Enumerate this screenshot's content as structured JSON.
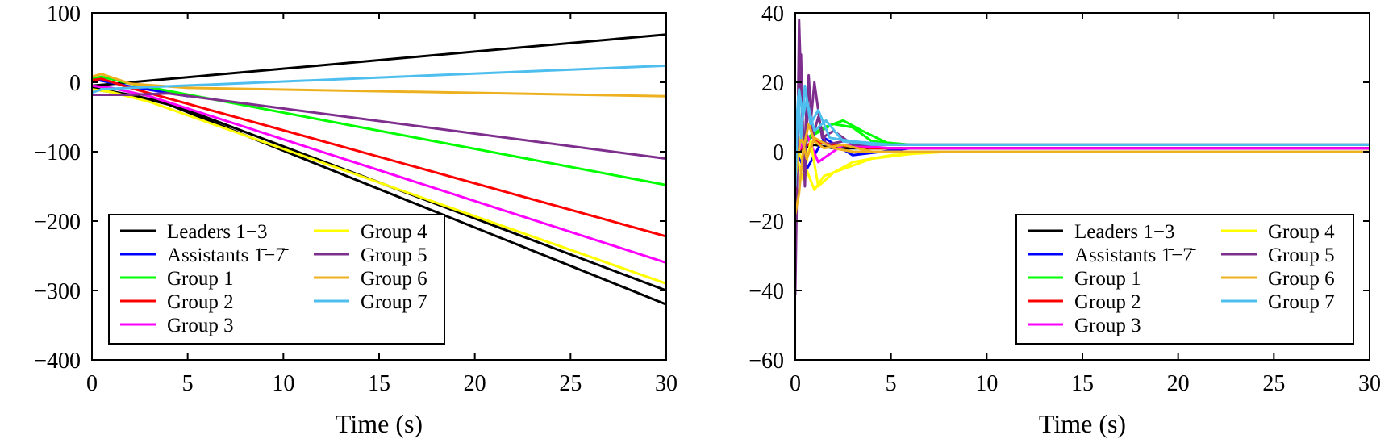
{
  "legend": {
    "entries": [
      {
        "label": "Leaders 1−3",
        "color": "#000000"
      },
      {
        "label": "Assistants 1̄−7̄",
        "color": "#0000ff"
      },
      {
        "label": "Group 1",
        "color": "#00ff00"
      },
      {
        "label": "Group 2",
        "color": "#ff0000"
      },
      {
        "label": "Group 3",
        "color": "#ff00ff"
      },
      {
        "label": "Group 4",
        "color": "#ffff00"
      },
      {
        "label": "Group 5",
        "color": "#7e2f8e"
      },
      {
        "label": "Group 6",
        "color": "#edb120"
      },
      {
        "label": "Group 7",
        "color": "#4dbeee"
      }
    ]
  },
  "chart_data": [
    {
      "type": "line",
      "xlabel": "Time (s)",
      "ylabel": "",
      "xlim": [
        0,
        30
      ],
      "ylim": [
        -400,
        100
      ],
      "xticks": [
        "0",
        "5",
        "10",
        "15",
        "20",
        "25",
        "30"
      ],
      "yticks": [
        "100",
        "0",
        "−100",
        "−200",
        "−300",
        "−400"
      ],
      "ytick_values": [
        100,
        0,
        -100,
        -200,
        -300,
        -400
      ],
      "legend_position": "bottom-left",
      "series": [
        {
          "name": "Leaders 1−3",
          "color": "#000000",
          "lines": [
            {
              "x": [
                0,
                30
              ],
              "y": [
                -5,
                69
              ]
            },
            {
              "x": [
                0,
                2,
                4,
                30
              ],
              "y": [
                -10,
                -18,
                -30,
                -300
              ]
            },
            {
              "x": [
                0,
                2,
                4,
                30
              ],
              "y": [
                -8,
                -18,
                -32,
                -320
              ]
            }
          ]
        },
        {
          "name": "Assistants 1̄−7̄",
          "color": "#0000ff",
          "lines": [
            {
              "x": [
                0,
                2,
                5
              ],
              "y": [
                5,
                -6,
                -20
              ]
            }
          ]
        },
        {
          "name": "Group 1",
          "color": "#00ff00",
          "lines": [
            {
              "x": [
                0,
                0.5,
                2,
                30
              ],
              "y": [
                5,
                8,
                -2,
                -148
              ]
            }
          ]
        },
        {
          "name": "Group 2",
          "color": "#ff0000",
          "lines": [
            {
              "x": [
                0,
                0.5,
                2,
                30
              ],
              "y": [
                3,
                5,
                -8,
                -222
              ]
            }
          ]
        },
        {
          "name": "Group 3",
          "color": "#ff00ff",
          "lines": [
            {
              "x": [
                0,
                1,
                3,
                30
              ],
              "y": [
                -5,
                -8,
                -20,
                -260
              ]
            }
          ]
        },
        {
          "name": "Group 4",
          "color": "#ffff00",
          "lines": [
            {
              "x": [
                0,
                1,
                3,
                30
              ],
              "y": [
                -10,
                -14,
                -28,
                -290
              ]
            }
          ]
        },
        {
          "name": "Group 5",
          "color": "#7e2f8e",
          "lines": [
            {
              "x": [
                0,
                2,
                4,
                30
              ],
              "y": [
                -18,
                -18,
                -16,
                -110
              ]
            }
          ]
        },
        {
          "name": "Group 6",
          "color": "#edb120",
          "lines": [
            {
              "x": [
                0,
                0.5,
                2,
                5,
                30
              ],
              "y": [
                8,
                12,
                -2,
                -8,
                -20
              ]
            }
          ]
        },
        {
          "name": "Group 7",
          "color": "#4dbeee",
          "lines": [
            {
              "x": [
                0,
                0.5,
                2,
                30
              ],
              "y": [
                -15,
                -10,
                -8,
                24
              ]
            }
          ]
        }
      ]
    },
    {
      "type": "line",
      "xlabel": "Time (s)",
      "ylabel": "",
      "xlim": [
        0,
        30
      ],
      "ylim": [
        -60,
        40
      ],
      "xticks": [
        "0",
        "5",
        "10",
        "15",
        "20",
        "25",
        "30"
      ],
      "yticks": [
        "40",
        "20",
        "0",
        "−20",
        "−40",
        "−60"
      ],
      "ytick_values": [
        40,
        20,
        0,
        -20,
        -40,
        -60
      ],
      "legend_position": "bottom-right",
      "series": [
        {
          "name": "Leaders 1−3",
          "color": "#000000",
          "lines": [
            {
              "x": [
                0,
                1,
                2,
                4,
                30
              ],
              "y": [
                0,
                2,
                1,
                1,
                1
              ]
            }
          ]
        },
        {
          "name": "Assistants 1̄−7̄",
          "color": "#0000ff",
          "lines": [
            {
              "x": [
                0,
                0.5,
                1.5,
                3,
                6,
                30
              ],
              "y": [
                2,
                -6,
                4,
                -1,
                1,
                1
              ]
            }
          ]
        },
        {
          "name": "Group 1",
          "color": "#00ff00",
          "lines": [
            {
              "x": [
                0,
                1,
                2,
                3,
                4,
                6,
                30
              ],
              "y": [
                0,
                5,
                8,
                7,
                3,
                2,
                2
              ]
            },
            {
              "x": [
                0,
                1.5,
                2.5,
                3.5,
                5,
                30
              ],
              "y": [
                2,
                7,
                9,
                6,
                2,
                2
              ]
            }
          ]
        },
        {
          "name": "Group 2",
          "color": "#ff0000",
          "lines": [
            {
              "x": [
                0,
                1,
                2,
                4,
                30
              ],
              "y": [
                0,
                3,
                2,
                1,
                1
              ]
            }
          ]
        },
        {
          "name": "Group 3",
          "color": "#ff00ff",
          "lines": [
            {
              "x": [
                0,
                0.6,
                1.2,
                2.5,
                5,
                30
              ],
              "y": [
                -2,
                5,
                -3,
                2,
                1,
                1
              ]
            }
          ]
        },
        {
          "name": "Group 4",
          "color": "#ffff00",
          "lines": [
            {
              "x": [
                0,
                0.4,
                0.8,
                1.2,
                2,
                3,
                5,
                8,
                30
              ],
              "y": [
                0,
                -8,
                3,
                -10,
                -6,
                -3,
                -1,
                0,
                0
              ]
            },
            {
              "x": [
                0,
                0.5,
                1,
                1.5,
                2.5,
                4,
                7,
                30
              ],
              "y": [
                2,
                -4,
                -11,
                -7,
                -5,
                -2,
                0,
                0
              ]
            }
          ]
        },
        {
          "name": "Group 5",
          "color": "#7e2f8e",
          "lines": [
            {
              "x": [
                0,
                0.1,
                0.2,
                0.3,
                0.5,
                0.7,
                0.9,
                1.2,
                1.6,
                2.5,
                4,
                30
              ],
              "y": [
                -41,
                -5,
                38,
                20,
                -10,
                22,
                4,
                10,
                2,
                3,
                2,
                2
              ]
            },
            {
              "x": [
                0,
                0.15,
                0.3,
                0.45,
                0.6,
                0.8,
                1,
                1.4,
                2,
                3,
                5,
                30
              ],
              "y": [
                -30,
                10,
                28,
                -5,
                15,
                8,
                20,
                4,
                6,
                2,
                2,
                2
              ]
            }
          ]
        },
        {
          "name": "Group 6",
          "color": "#edb120",
          "lines": [
            {
              "x": [
                0,
                0.2,
                0.4,
                0.7,
                1,
                1.5,
                2.5,
                4,
                30
              ],
              "y": [
                -18,
                -12,
                0,
                8,
                3,
                1,
                2,
                0,
                0
              ]
            },
            {
              "x": [
                0,
                0.3,
                0.6,
                1,
                2,
                3,
                30
              ],
              "y": [
                -8,
                5,
                -2,
                4,
                1,
                0,
                0
              ]
            }
          ]
        },
        {
          "name": "Group 7",
          "color": "#4dbeee",
          "lines": [
            {
              "x": [
                0,
                0.15,
                0.3,
                0.5,
                0.8,
                1.2,
                1.8,
                3,
                5,
                30
              ],
              "y": [
                -10,
                16,
                4,
                19,
                8,
                12,
                4,
                3,
                2,
                2
              ]
            },
            {
              "x": [
                0,
                0.2,
                0.4,
                0.6,
                1,
                1.6,
                2.5,
                4,
                30
              ],
              "y": [
                5,
                18,
                10,
                15,
                6,
                9,
                3,
                2,
                2
              ]
            }
          ]
        }
      ]
    }
  ]
}
